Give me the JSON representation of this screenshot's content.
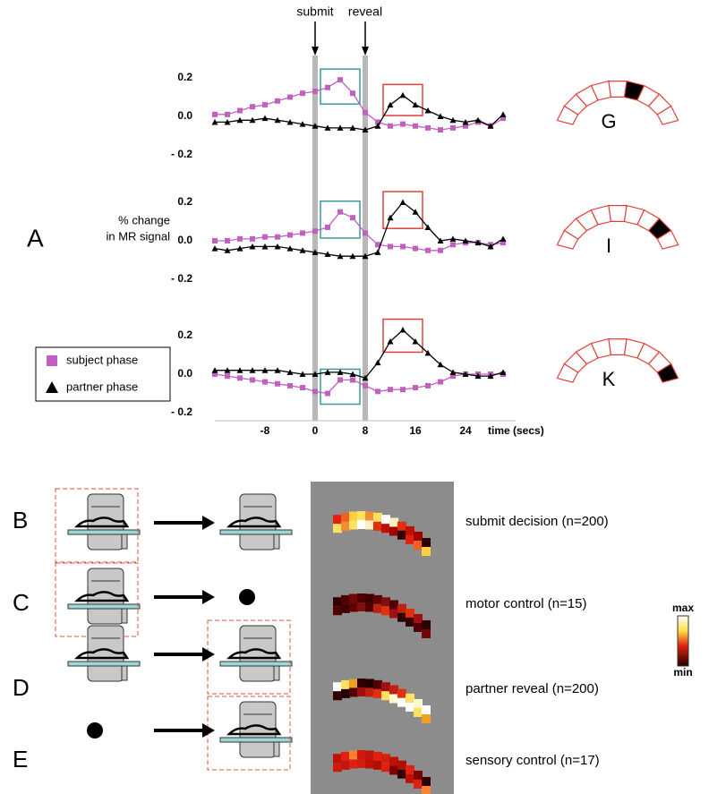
{
  "panel_label": "A",
  "chart_data": [
    {
      "type": "line",
      "region": "G",
      "events": [
        {
          "label": "submit",
          "x": 0
        },
        {
          "label": "reveal",
          "x": 8
        }
      ],
      "x": [
        -16,
        -14,
        -12,
        -10,
        -8,
        -6,
        -4,
        -2,
        0,
        2,
        4,
        6,
        8,
        10,
        12,
        14,
        16,
        18,
        20,
        22,
        24,
        26,
        28,
        30
      ],
      "xlim": [
        -18,
        32
      ],
      "ylim": [
        -0.22,
        0.25
      ],
      "yticks": [
        0.2,
        {
          "value": 0,
          "label": "0.0"
        },
        {
          "value": -0.2,
          "label": "- 0.2"
        }
      ],
      "series": [
        {
          "color": "#c060c0",
          "marker": "square",
          "highlight": [
            2,
            6
          ],
          "highlight_color": "#3a9a9a",
          "values": [
            0.01,
            0.01,
            0.03,
            0.05,
            0.06,
            0.08,
            0.1,
            0.12,
            0.13,
            0.15,
            0.19,
            0.12,
            0.02,
            -0.03,
            -0.05,
            -0.04,
            -0.05,
            -0.06,
            -0.07,
            -0.06,
            -0.05,
            -0.03,
            -0.05,
            -0.01
          ]
        },
        {
          "color": "#000000",
          "marker": "triangle",
          "highlight": [
            12,
            16
          ],
          "highlight_color": "#e0403a",
          "values": [
            -0.03,
            -0.03,
            -0.02,
            -0.02,
            -0.01,
            -0.02,
            -0.03,
            -0.04,
            -0.05,
            -0.06,
            -0.06,
            -0.06,
            -0.07,
            -0.05,
            0.06,
            0.11,
            0.06,
            0.03,
            0.0,
            -0.02,
            -0.03,
            -0.02,
            -0.05,
            0.01
          ]
        }
      ]
    },
    {
      "type": "line",
      "region": "I",
      "ylabel": [
        "% change",
        "in MR signal"
      ],
      "x": [
        -16,
        -14,
        -12,
        -10,
        -8,
        -6,
        -4,
        -2,
        0,
        2,
        4,
        6,
        8,
        10,
        12,
        14,
        16,
        18,
        20,
        22,
        24,
        26,
        28,
        30
      ],
      "xlim": [
        -18,
        32
      ],
      "ylim": [
        -0.22,
        0.25
      ],
      "yticks": [
        0.2,
        {
          "value": 0,
          "label": "0.0"
        },
        {
          "value": -0.2,
          "label": "- 0.2"
        }
      ],
      "series": [
        {
          "color": "#c060c0",
          "marker": "square",
          "highlight": [
            2,
            6
          ],
          "highlight_color": "#3a9a9a",
          "values": [
            0.0,
            0.0,
            0.01,
            0.01,
            0.02,
            0.02,
            0.03,
            0.04,
            0.05,
            0.07,
            0.15,
            0.12,
            0.04,
            -0.02,
            -0.03,
            -0.03,
            -0.04,
            -0.05,
            -0.05,
            -0.02,
            -0.01,
            -0.01,
            -0.02,
            -0.01
          ]
        },
        {
          "color": "#000000",
          "marker": "triangle",
          "highlight": [
            12,
            16
          ],
          "highlight_color": "#e0403a",
          "values": [
            -0.04,
            -0.05,
            -0.04,
            -0.03,
            -0.03,
            -0.03,
            -0.04,
            -0.05,
            -0.06,
            -0.07,
            -0.08,
            -0.08,
            -0.08,
            -0.06,
            0.12,
            0.2,
            0.15,
            0.07,
            0.0,
            0.01,
            0.0,
            -0.01,
            -0.03,
            0.01
          ]
        }
      ]
    },
    {
      "type": "line",
      "region": "K",
      "x": [
        -16,
        -14,
        -12,
        -10,
        -8,
        -6,
        -4,
        -2,
        0,
        2,
        4,
        6,
        8,
        10,
        12,
        14,
        16,
        18,
        20,
        22,
        24,
        26,
        28,
        30
      ],
      "xlim": [
        -18,
        32
      ],
      "ylim": [
        -0.22,
        0.25
      ],
      "yticks": [
        0.2,
        {
          "value": 0,
          "label": "0.0"
        },
        {
          "value": -0.2,
          "label": "- 0.2"
        }
      ],
      "xticks": [
        -8,
        0,
        8,
        16,
        24
      ],
      "xlabel": "time (secs)",
      "series": [
        {
          "name": "subject phase",
          "color": "#c060c0",
          "marker": "square",
          "highlight": [
            2,
            6
          ],
          "highlight_color": "#3a9a9a",
          "values": [
            0.0,
            -0.01,
            -0.02,
            -0.03,
            -0.04,
            -0.05,
            -0.06,
            -0.07,
            -0.09,
            -0.1,
            -0.03,
            -0.03,
            -0.06,
            -0.09,
            -0.08,
            -0.08,
            -0.07,
            -0.06,
            -0.04,
            -0.01,
            0.0,
            0.0,
            0.0,
            0.0
          ]
        },
        {
          "name": "partner phase",
          "color": "#000000",
          "marker": "triangle",
          "highlight": [
            12,
            16
          ],
          "highlight_color": "#e0403a",
          "values": [
            0.02,
            0.02,
            0.02,
            0.02,
            0.02,
            0.02,
            0.01,
            0.0,
            0.0,
            0.01,
            0.01,
            0.0,
            -0.02,
            0.06,
            0.17,
            0.23,
            0.17,
            0.11,
            0.05,
            0.01,
            0.0,
            -0.01,
            -0.01,
            0.01
          ]
        }
      ]
    }
  ],
  "conditions": [
    {
      "letter": "B",
      "label": "submit decision (n=200)"
    },
    {
      "letter": "C",
      "label": "motor control (n=15)"
    },
    {
      "letter": "D",
      "label": "partner reveal (n=200)"
    },
    {
      "letter": "E",
      "label": "sensory control (n=17)"
    }
  ],
  "colorbar": {
    "max": "max",
    "min": "min"
  }
}
